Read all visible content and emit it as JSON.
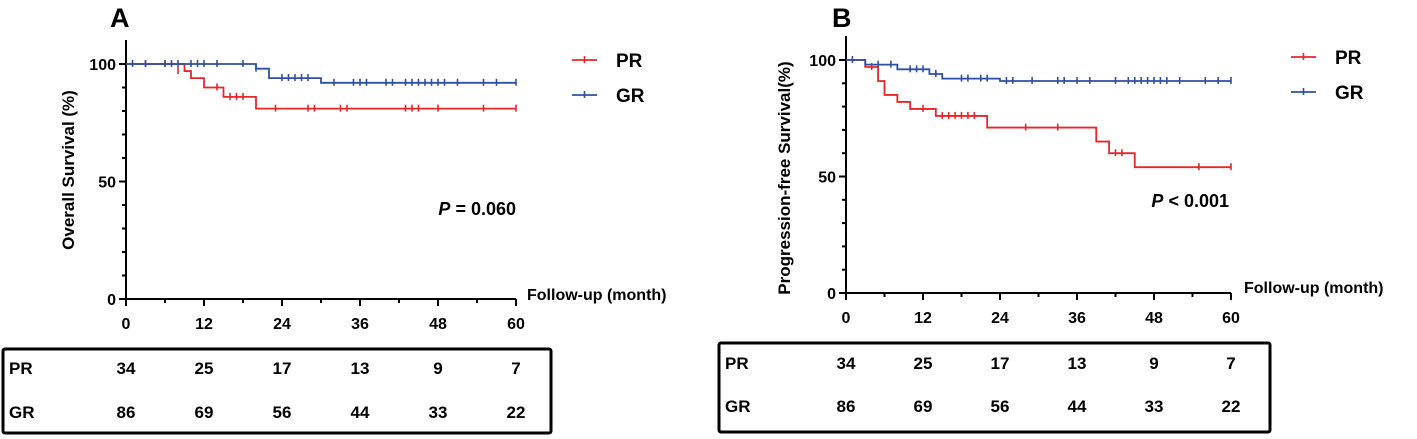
{
  "colors": {
    "PR": "#e8262a",
    "GR": "#2e4fa3",
    "axis": "#000000"
  },
  "chart_data": [
    {
      "panel": "A",
      "type": "line",
      "title": "",
      "xlabel": "Follow-up (month)",
      "ylabel": "Overall Survival (%)",
      "xlim": [
        0,
        60
      ],
      "ylim": [
        0,
        100
      ],
      "xticks": [
        0,
        12,
        24,
        36,
        48,
        60
      ],
      "yticks": [
        0,
        50,
        100
      ],
      "annotation": {
        "italic": "P",
        "rest": " = 0.060"
      },
      "legend": {
        "position": "top-right",
        "entries": [
          "PR",
          "GR"
        ]
      },
      "series": [
        {
          "name": "PR",
          "steps": [
            [
              0,
              100
            ],
            [
              9,
              97
            ],
            [
              10,
              94
            ],
            [
              12,
              90
            ],
            [
              15,
              86
            ],
            [
              20,
              81
            ],
            [
              60,
              81
            ]
          ],
          "censor": [
            [
              3,
              100
            ],
            [
              6,
              100
            ],
            [
              8,
              97
            ],
            [
              14,
              90
            ],
            [
              16,
              86
            ],
            [
              17,
              86
            ],
            [
              18,
              86
            ],
            [
              23,
              81
            ],
            [
              28,
              81
            ],
            [
              29,
              81
            ],
            [
              33,
              81
            ],
            [
              34,
              81
            ],
            [
              43,
              81
            ],
            [
              44,
              81
            ],
            [
              45,
              81
            ],
            [
              48,
              81
            ],
            [
              55,
              81
            ],
            [
              60,
              81
            ]
          ]
        },
        {
          "name": "GR",
          "steps": [
            [
              0,
              100
            ],
            [
              20,
              98
            ],
            [
              22,
              94
            ],
            [
              30,
              92
            ],
            [
              60,
              92
            ]
          ],
          "censor": [
            [
              1,
              100
            ],
            [
              3,
              100
            ],
            [
              6,
              100
            ],
            [
              7,
              100
            ],
            [
              8,
              100
            ],
            [
              10,
              100
            ],
            [
              11,
              100
            ],
            [
              12,
              100
            ],
            [
              14,
              100
            ],
            [
              18,
              100
            ],
            [
              20,
              98
            ],
            [
              24,
              94
            ],
            [
              25,
              94
            ],
            [
              26,
              94
            ],
            [
              27,
              94
            ],
            [
              28,
              94
            ],
            [
              32,
              92
            ],
            [
              35,
              92
            ],
            [
              36,
              92
            ],
            [
              37,
              92
            ],
            [
              40,
              92
            ],
            [
              41,
              92
            ],
            [
              43,
              92
            ],
            [
              44,
              92
            ],
            [
              45,
              92
            ],
            [
              46,
              92
            ],
            [
              47,
              92
            ],
            [
              48,
              92
            ],
            [
              49,
              92
            ],
            [
              51,
              92
            ],
            [
              55,
              92
            ],
            [
              57,
              92
            ],
            [
              60,
              92
            ]
          ]
        }
      ],
      "risk_table": {
        "rows": [
          {
            "label": "PR",
            "values": [
              34,
              25,
              17,
              13,
              9,
              7
            ]
          },
          {
            "label": "GR",
            "values": [
              86,
              69,
              56,
              44,
              33,
              22
            ]
          }
        ]
      }
    },
    {
      "panel": "B",
      "type": "line",
      "title": "",
      "xlabel": "Follow-up (month)",
      "ylabel": "Progression-free Survival(%)",
      "xlim": [
        0,
        60
      ],
      "ylim": [
        0,
        100
      ],
      "xticks": [
        0,
        12,
        24,
        36,
        48,
        60
      ],
      "yticks": [
        0,
        50,
        100
      ],
      "annotation": {
        "italic": "P",
        "rest": " < 0.001"
      },
      "legend": {
        "position": "top-right",
        "entries": [
          "PR",
          "GR"
        ]
      },
      "series": [
        {
          "name": "PR",
          "steps": [
            [
              0,
              100
            ],
            [
              3,
              97
            ],
            [
              5,
              91
            ],
            [
              6,
              85
            ],
            [
              8,
              82
            ],
            [
              10,
              79
            ],
            [
              14,
              76
            ],
            [
              22,
              71
            ],
            [
              39,
              65
            ],
            [
              41,
              60
            ],
            [
              45,
              54
            ],
            [
              60,
              54
            ]
          ],
          "censor": [
            [
              4,
              97
            ],
            [
              12,
              79
            ],
            [
              15,
              76
            ],
            [
              16,
              76
            ],
            [
              17,
              76
            ],
            [
              18,
              76
            ],
            [
              19,
              76
            ],
            [
              20,
              76
            ],
            [
              28,
              71
            ],
            [
              33,
              71
            ],
            [
              42,
              60
            ],
            [
              43,
              60
            ],
            [
              55,
              54
            ],
            [
              60,
              54
            ]
          ]
        },
        {
          "name": "GR",
          "steps": [
            [
              0,
              100
            ],
            [
              3,
              98
            ],
            [
              8,
              96
            ],
            [
              13,
              94
            ],
            [
              15,
              92
            ],
            [
              24,
              91
            ],
            [
              60,
              91
            ]
          ],
          "censor": [
            [
              1,
              100
            ],
            [
              5,
              98
            ],
            [
              7,
              98
            ],
            [
              10,
              96
            ],
            [
              11,
              96
            ],
            [
              12,
              96
            ],
            [
              14,
              94
            ],
            [
              18,
              92
            ],
            [
              19,
              92
            ],
            [
              21,
              92
            ],
            [
              22,
              92
            ],
            [
              25,
              91
            ],
            [
              26,
              91
            ],
            [
              29,
              91
            ],
            [
              33,
              91
            ],
            [
              34,
              91
            ],
            [
              36,
              91
            ],
            [
              38,
              91
            ],
            [
              42,
              91
            ],
            [
              44,
              91
            ],
            [
              45,
              91
            ],
            [
              46,
              91
            ],
            [
              47,
              91
            ],
            [
              48,
              91
            ],
            [
              49,
              91
            ],
            [
              50,
              91
            ],
            [
              52,
              91
            ],
            [
              56,
              91
            ],
            [
              58,
              91
            ],
            [
              60,
              91
            ]
          ]
        }
      ],
      "risk_table": {
        "rows": [
          {
            "label": "PR",
            "values": [
              34,
              25,
              17,
              13,
              9,
              7
            ]
          },
          {
            "label": "GR",
            "values": [
              86,
              69,
              56,
              44,
              33,
              22
            ]
          }
        ]
      }
    }
  ]
}
